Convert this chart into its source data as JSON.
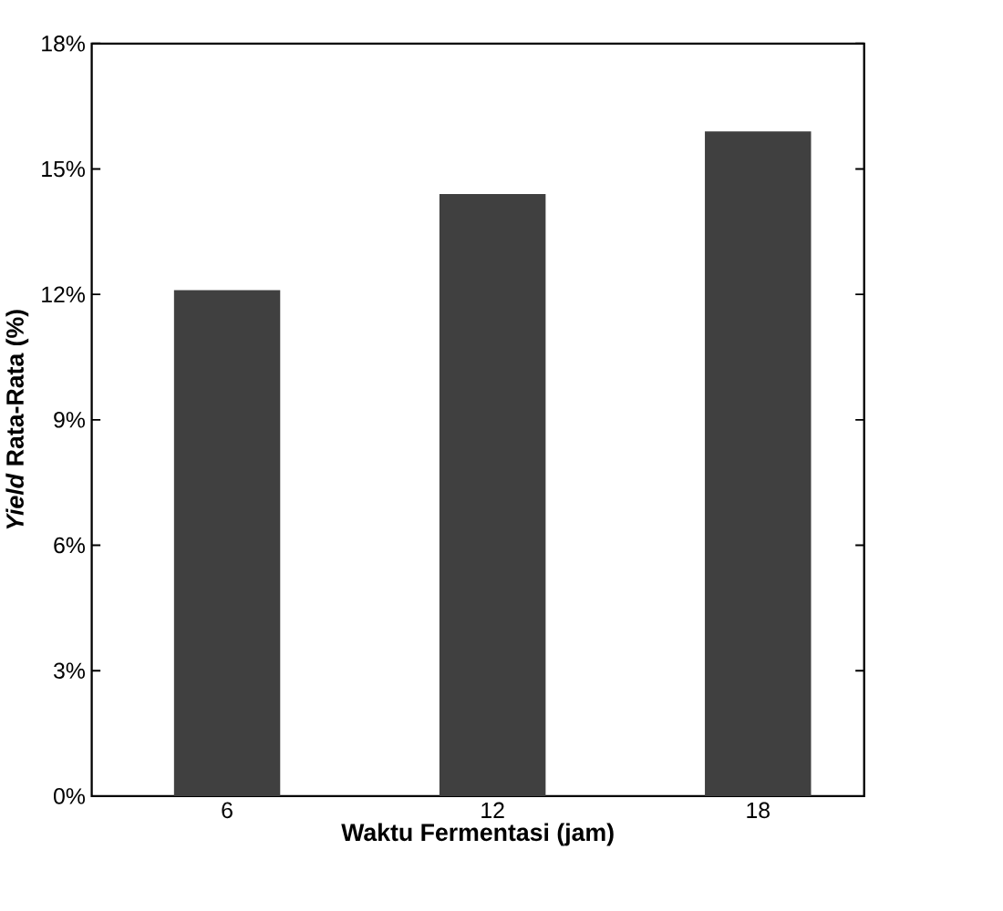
{
  "chart_data": {
    "type": "bar",
    "xlabel": "Waktu Fermentasi (jam)",
    "ylabel": "*Yield* Rata-Rata (%)",
    "categories": [
      "6",
      "12",
      "18"
    ],
    "values": [
      12.1,
      14.4,
      15.9
    ],
    "color": "#404040",
    "ylim": [
      0,
      18
    ],
    "yticks": [
      {
        "value": 0,
        "label": "0%"
      },
      {
        "value": 3,
        "label": "3%"
      },
      {
        "value": 6,
        "label": "6%"
      },
      {
        "value": 9,
        "label": "9%"
      },
      {
        "value": 12,
        "label": "12%"
      },
      {
        "value": 15,
        "label": "15%"
      },
      {
        "value": 18,
        "label": "18%"
      }
    ],
    "grid": false
  }
}
